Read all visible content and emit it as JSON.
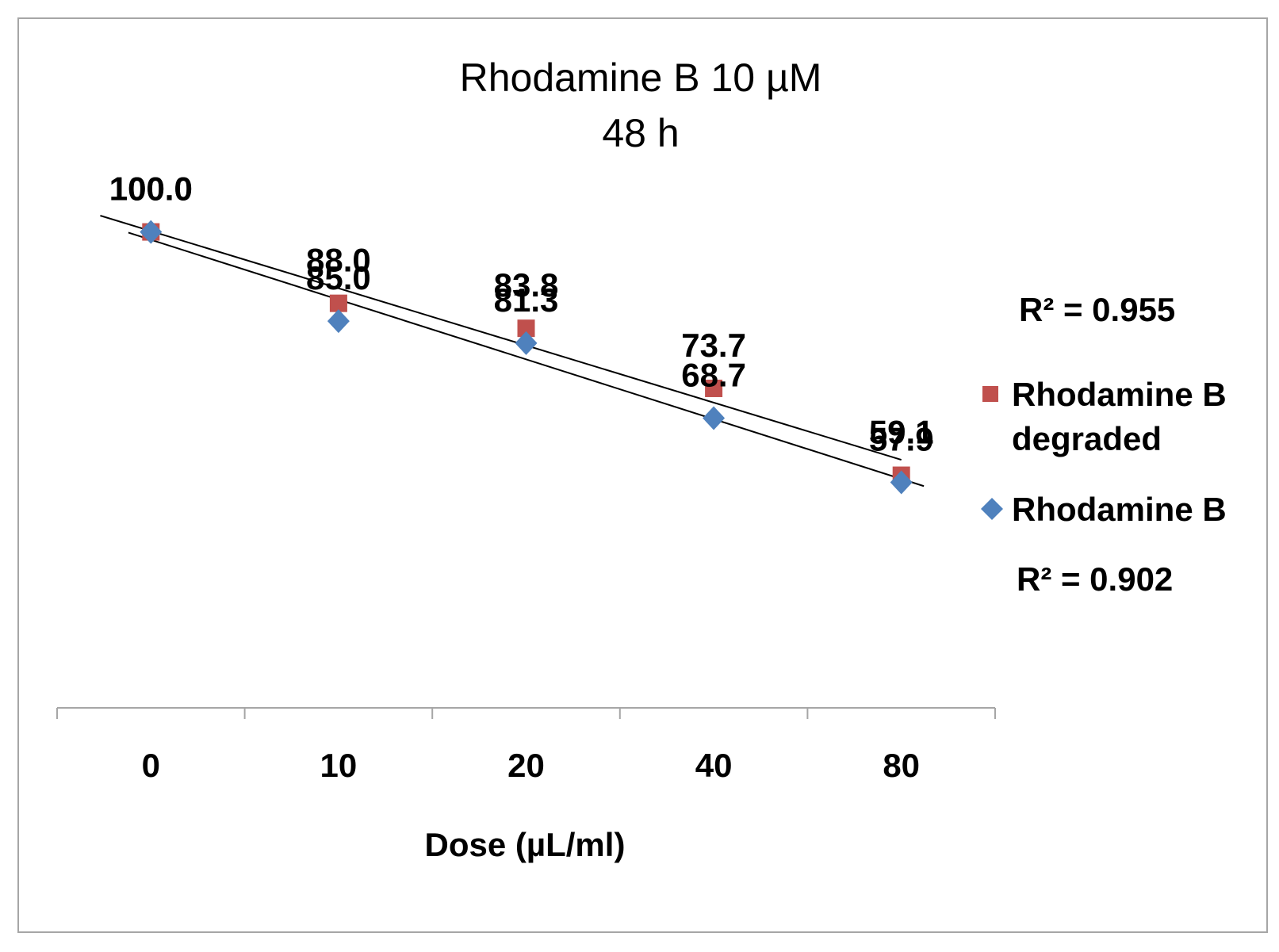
{
  "chart_data": {
    "type": "scatter",
    "title": "Rhodamine B 10 µM",
    "subtitle": "48 h",
    "xlabel": "Dose (µL/ml)",
    "ylabel": "",
    "categories": [
      "0",
      "10",
      "20",
      "40",
      "80"
    ],
    "ylim": [
      20,
      115
    ],
    "series": [
      {
        "name": "Rhodamine B degraded",
        "legend_line1": "Rhodamine B",
        "legend_line2": "degraded",
        "marker": "square",
        "color": "#c0504d",
        "values": [
          100.0,
          88.0,
          83.8,
          73.7,
          59.1
        ],
        "labels": [
          "100.0",
          "88.0",
          "83.8",
          "73.7",
          "59.1"
        ],
        "r2": "R² = 0.955"
      },
      {
        "name": "Rhodamine B",
        "marker": "diamond",
        "color": "#4f81bd",
        "values": [
          100.0,
          85.0,
          81.3,
          68.7,
          57.9
        ],
        "labels": [
          "100.0",
          "85.0",
          "81.3",
          "68.7",
          "57.9"
        ],
        "r2": "R² = 0.902"
      }
    ],
    "legend": "right"
  }
}
